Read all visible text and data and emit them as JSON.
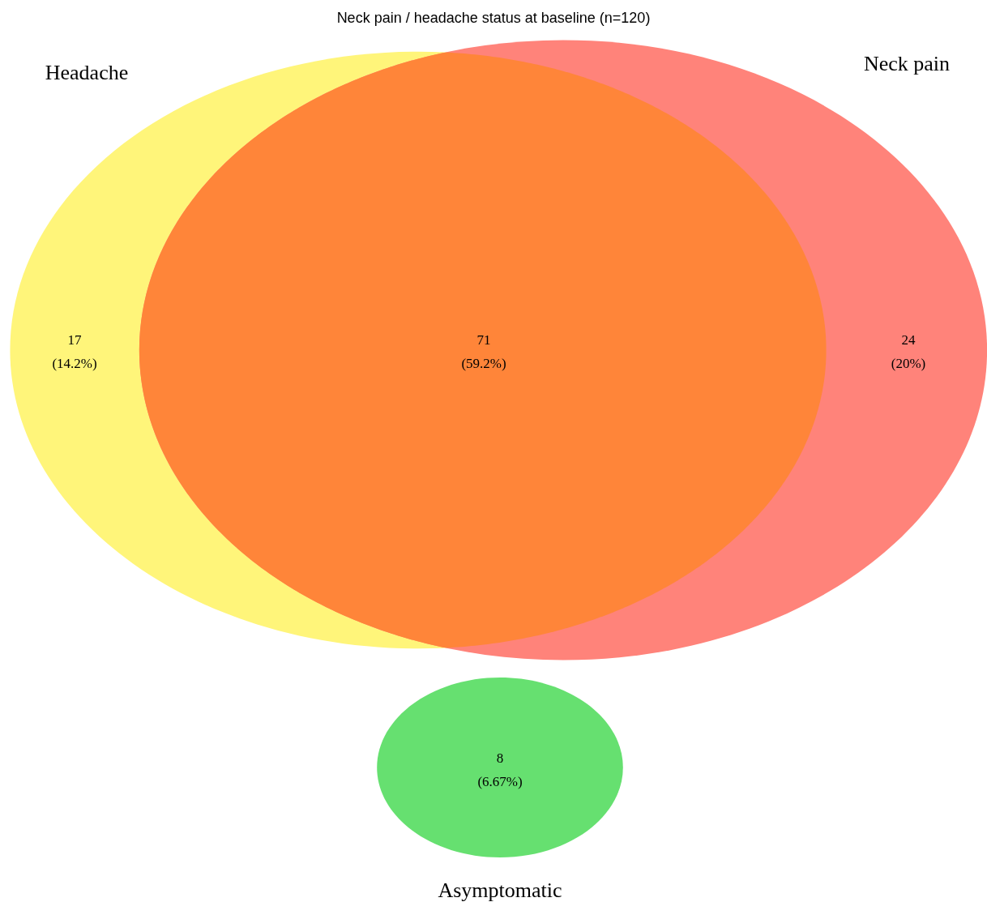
{
  "chart_data": {
    "type": "other",
    "title": "Neck pain / headache status at baseline (n=120)",
    "categories": [
      null,
      null,
      null,
      null
    ],
    "values": [
      14.2,
      59.2,
      20,
      6.67
    ],
    "value_labels": [
      "17\n(14.2%)",
      "71\n(59.2%)",
      "24\n(20%)",
      "8\n(6.67%)"
    ],
    "colors": [
      "#fff57a",
      "#ff8539",
      "#ff837a",
      "#66e070"
    ],
    "annotations": [
      "Headache",
      "Neck pain",
      "Asymptomatic"
    ]
  }
}
